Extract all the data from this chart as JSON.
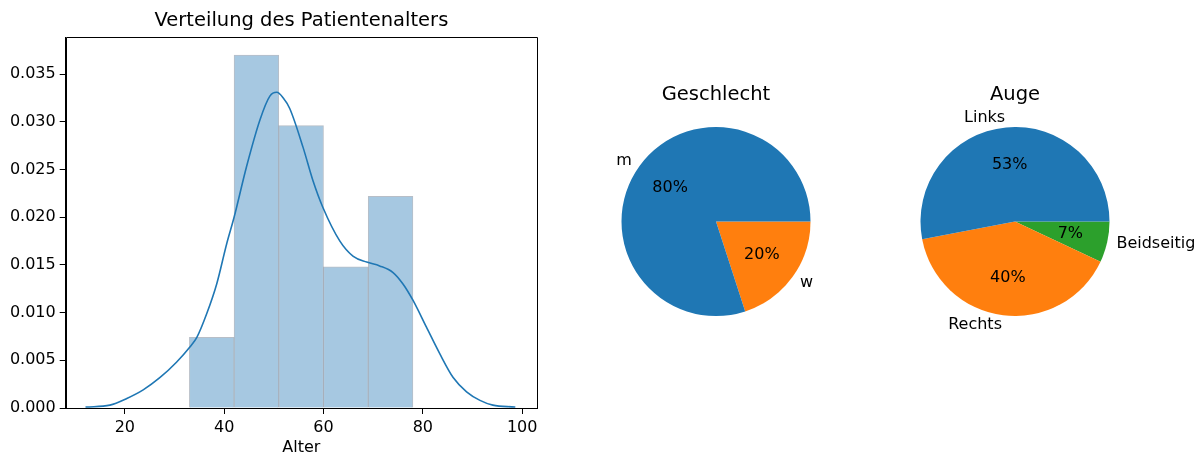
{
  "chart_data": [
    {
      "type": "histogram",
      "title": "Verteilung des Patientenalters",
      "xlabel": "Alter",
      "bins": [
        33,
        42,
        51,
        60,
        69,
        78
      ],
      "series": [
        {
          "values": [
            0.0074,
            0.037,
            0.0296,
            0.0148,
            0.0222
          ],
          "color": "#a6c8e1"
        },
        {
          "type": "line",
          "color": "#1f77b4",
          "x": [
            12.2,
            17.0,
            20.4,
            23.7,
            27.1,
            30.4,
            33.1,
            34.5,
            36.5,
            38.5,
            40.5,
            42.0,
            44.5,
            47.2,
            49.2,
            50.6,
            51.9,
            53.2,
            55.9,
            57.9,
            59.9,
            63.3,
            66.0,
            68.7,
            71.3,
            74.0,
            76.0,
            78.0,
            80.7,
            83.4,
            86.1,
            88.8,
            91.5,
            94.1,
            98.5
          ],
          "values": [
            0.0001,
            0.0003,
            0.001,
            0.0019,
            0.0032,
            0.0048,
            0.0064,
            0.0074,
            0.0099,
            0.013,
            0.0172,
            0.02,
            0.0253,
            0.0302,
            0.0327,
            0.0331,
            0.0325,
            0.0314,
            0.0273,
            0.0238,
            0.021,
            0.0175,
            0.0159,
            0.0153,
            0.0149,
            0.0142,
            0.013,
            0.0113,
            0.0085,
            0.0057,
            0.0032,
            0.0017,
            0.0008,
            0.0003,
            0.0001
          ]
        }
      ],
      "xlim": [
        8.1,
        103
      ],
      "ylim": [
        0,
        0.0389
      ],
      "xticks": [
        20,
        40,
        60,
        80,
        100
      ],
      "yticks": [
        {
          "value": 0,
          "label": "0.000"
        },
        0.005,
        {
          "value": 0.01,
          "label": "0.010"
        },
        0.015,
        {
          "value": 0.02,
          "label": "0.020"
        },
        0.025,
        {
          "value": 0.03,
          "label": "0.030"
        },
        0.035
      ]
    },
    {
      "type": "pie",
      "title": "Geschlecht",
      "categories": [
        "w",
        "m"
      ],
      "values": [
        20,
        80
      ],
      "colors": [
        "#ff7f0e",
        "#1f77b4"
      ],
      "value_labels": [
        "20%",
        "80%"
      ]
    },
    {
      "type": "pie",
      "title": "Auge",
      "categories": [
        "Beidseitig",
        "Rechts",
        "Links"
      ],
      "values": [
        7,
        40,
        53
      ],
      "colors": [
        "#2ca02c",
        "#ff7f0e",
        "#1f77b4"
      ],
      "value_labels": [
        "7%",
        "40%",
        "53%"
      ]
    }
  ]
}
